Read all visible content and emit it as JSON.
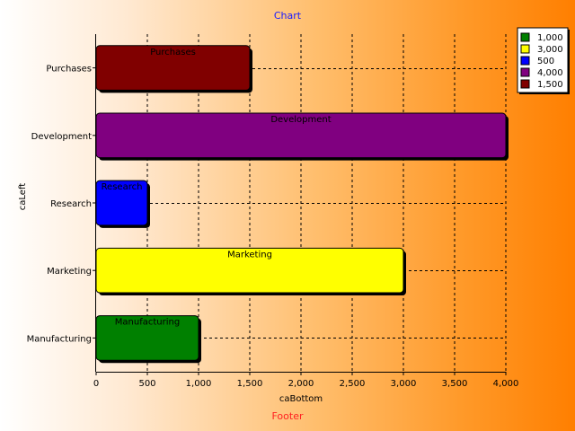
{
  "chart_data": {
    "type": "bar",
    "orientation": "horizontal",
    "title": "Chart",
    "footer": "Footer",
    "xlabel": "caBottom",
    "ylabel": "caLeft",
    "categories": [
      "Manufacturing",
      "Marketing",
      "Research",
      "Development",
      "Purchases"
    ],
    "values": [
      1000,
      3000,
      500,
      4000,
      1500
    ],
    "colors": [
      "#008000",
      "#ffff00",
      "#0000ff",
      "#800080",
      "#800000"
    ],
    "xlim": [
      0,
      4000
    ],
    "xticks": [
      0,
      500,
      1000,
      1500,
      2000,
      2500,
      3000,
      3500,
      4000
    ],
    "xtick_labels": [
      "0",
      "500",
      "1,000",
      "1,500",
      "2,000",
      "2,500",
      "3,000",
      "3,500",
      "4,000"
    ],
    "legend": {
      "placement": "top-right",
      "entries": [
        "1,000",
        "3,000",
        "500",
        "4,000",
        "1,500"
      ]
    },
    "grid": true
  }
}
